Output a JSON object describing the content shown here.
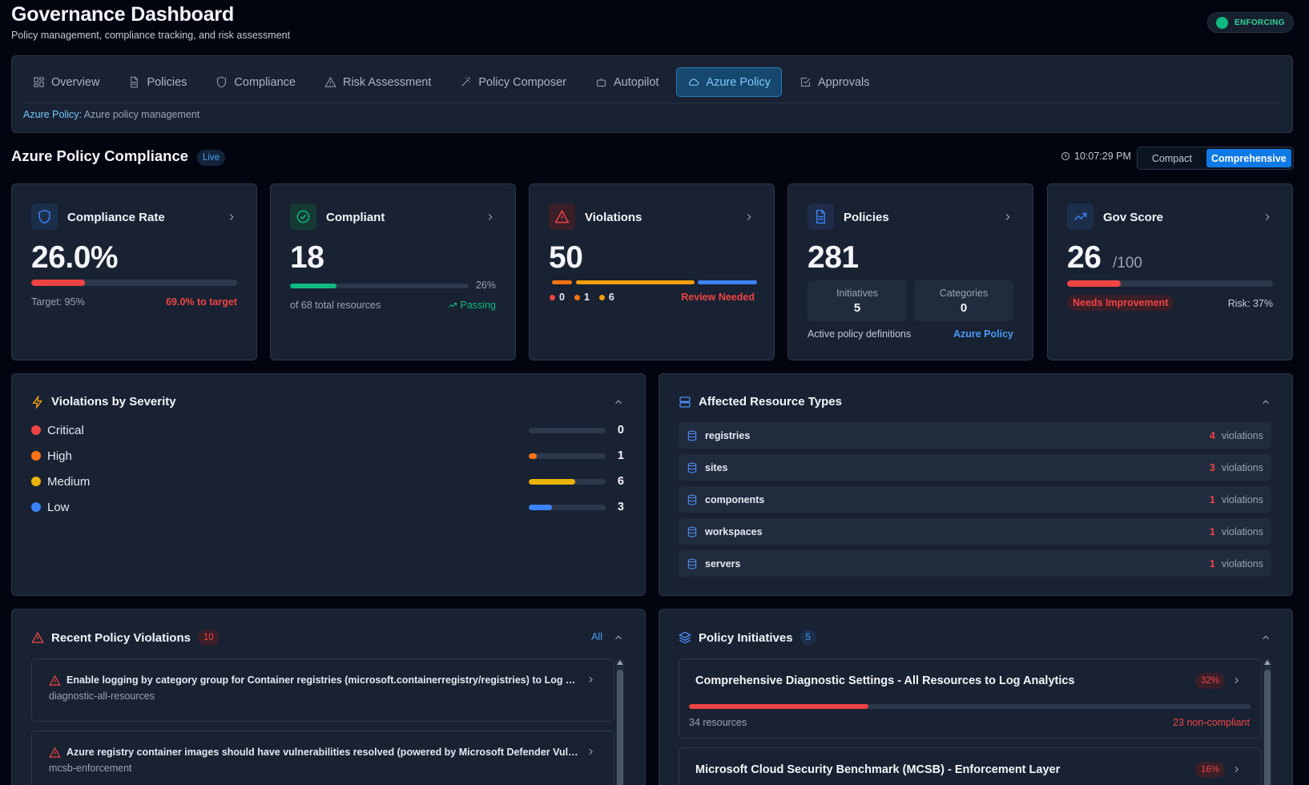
{
  "header": {
    "title": "Governance Dashboard",
    "subtitle": "Policy management, compliance tracking, and risk assessment",
    "status": "ENFORCING"
  },
  "nav": {
    "tabs": [
      {
        "label": "Overview",
        "icon": "grid-icon"
      },
      {
        "label": "Policies",
        "icon": "document-icon"
      },
      {
        "label": "Compliance",
        "icon": "shield-icon"
      },
      {
        "label": "Risk Assessment",
        "icon": "warning-icon"
      },
      {
        "label": "Policy Composer",
        "icon": "wand-icon"
      },
      {
        "label": "Autopilot",
        "icon": "robot-icon"
      },
      {
        "label": "Azure Policy",
        "icon": "cloud-icon"
      },
      {
        "label": "Approvals",
        "icon": "check-square-icon"
      }
    ],
    "active_tab": "Azure Policy",
    "breadcrumb_key": "Azure Policy:",
    "breadcrumb_desc": "Azure policy management"
  },
  "section": {
    "title": "Azure Policy Compliance",
    "live_badge": "Live",
    "time": "10:07:29 PM",
    "modes": [
      "Compact",
      "Comprehensive"
    ],
    "active_mode": "Comprehensive"
  },
  "cards": {
    "compliance_rate": {
      "title": "Compliance Rate",
      "value": "26.0%",
      "progress": 0.26,
      "target": "Target: 95%",
      "to_target": "69.0% to target"
    },
    "compliant": {
      "title": "Compliant",
      "value": "18",
      "progress": 0.26,
      "percent": "26%",
      "caption": "of 68 total resources",
      "status": "Passing"
    },
    "violations": {
      "title": "Violations",
      "value": "50",
      "counts": [
        "0",
        "1",
        "6"
      ],
      "status": "Review Needed"
    },
    "policies": {
      "title": "Policies",
      "value": "281",
      "initiatives_label": "Initiatives",
      "initiatives_value": "5",
      "categories_label": "Categories",
      "categories_value": "0",
      "caption": "Active policy definitions",
      "link": "Azure Policy"
    },
    "gov_score": {
      "title": "Gov Score",
      "value": "26",
      "suffix": "/100",
      "progress": 0.26,
      "status": "Needs Improvement",
      "risk": "Risk: 37%"
    }
  },
  "severity": {
    "title": "Violations by Severity",
    "items": [
      {
        "label": "Critical",
        "count": "0",
        "fraction": 0.0,
        "color": "#ef4444"
      },
      {
        "label": "High",
        "count": "1",
        "fraction": 0.1,
        "color": "#f97316"
      },
      {
        "label": "Medium",
        "count": "6",
        "fraction": 0.6,
        "color": "#eab308"
      },
      {
        "label": "Low",
        "count": "3",
        "fraction": 0.3,
        "color": "#3b82f6"
      }
    ]
  },
  "resources": {
    "title": "Affected Resource Types",
    "suffix": "violations",
    "items": [
      {
        "name": "registries",
        "count": "4"
      },
      {
        "name": "sites",
        "count": "3"
      },
      {
        "name": "components",
        "count": "1"
      },
      {
        "name": "workspaces",
        "count": "1"
      },
      {
        "name": "servers",
        "count": "1"
      }
    ]
  },
  "recent": {
    "title": "Recent Policy Violations",
    "count": "10",
    "filter": "All",
    "items": [
      {
        "title": "Enable logging by category group for Container registries (microsoft.containerregistry/registries) to Log Anal...",
        "source": "diagnostic-all-resources"
      },
      {
        "title": "Azure registry container images should have vulnerabilities resolved (powered by Microsoft Defender Vulner...",
        "source": "mcsb-enforcement"
      }
    ]
  },
  "initiatives": {
    "title": "Policy Initiatives",
    "count": "5",
    "items": [
      {
        "name": "Comprehensive Diagnostic Settings - All Resources to Log Analytics",
        "percent": "32%",
        "progress": 0.32,
        "resources": "34 resources",
        "noncompliant": "23 non-compliant"
      },
      {
        "name": "Microsoft Cloud Security Benchmark (MCSB) - Enforcement Layer",
        "percent": "16%",
        "progress": 0.16
      }
    ]
  },
  "colors": {
    "accent": "#0f7ae5",
    "danger": "#ef4444",
    "success": "#10b981",
    "warning": "#f59e0b",
    "info": "#3b82f6"
  }
}
